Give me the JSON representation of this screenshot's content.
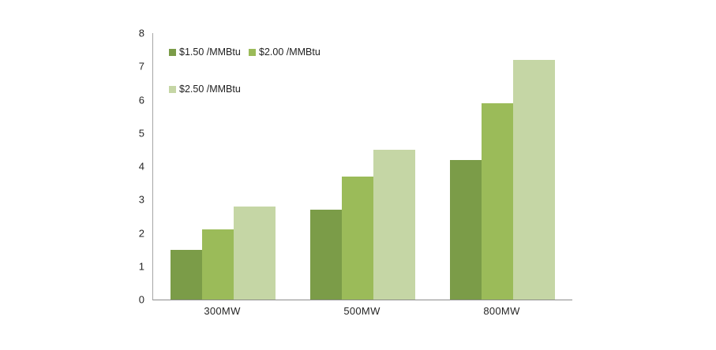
{
  "chart_data": {
    "type": "bar",
    "title": "",
    "xlabel": "",
    "ylabel": "",
    "categories": [
      "300MW",
      "500MW",
      "800MW"
    ],
    "series": [
      {
        "name": "$1.50 /MMBtu",
        "color": "#7B9C48",
        "values": [
          1.5,
          2.7,
          4.2
        ]
      },
      {
        "name": "$2.00 /MMBtu",
        "color": "#9BBB59",
        "values": [
          2.1,
          3.7,
          5.9
        ]
      },
      {
        "name": "$2.50 /MMBtu",
        "color": "#C5D6A5",
        "values": [
          2.8,
          4.5,
          7.2
        ]
      }
    ],
    "ylim": [
      0,
      8
    ],
    "yticks": [
      0,
      1,
      2,
      3,
      4,
      5,
      6,
      7,
      8
    ],
    "grid": false,
    "legend_position": "inside-top-left",
    "legend_rows": [
      [
        0,
        1
      ],
      [
        2
      ]
    ]
  },
  "colors": {
    "axis_line": "#A6A6A6",
    "baseline": "#8C8C8C",
    "text": "#262626",
    "background": "#FFFFFF"
  }
}
